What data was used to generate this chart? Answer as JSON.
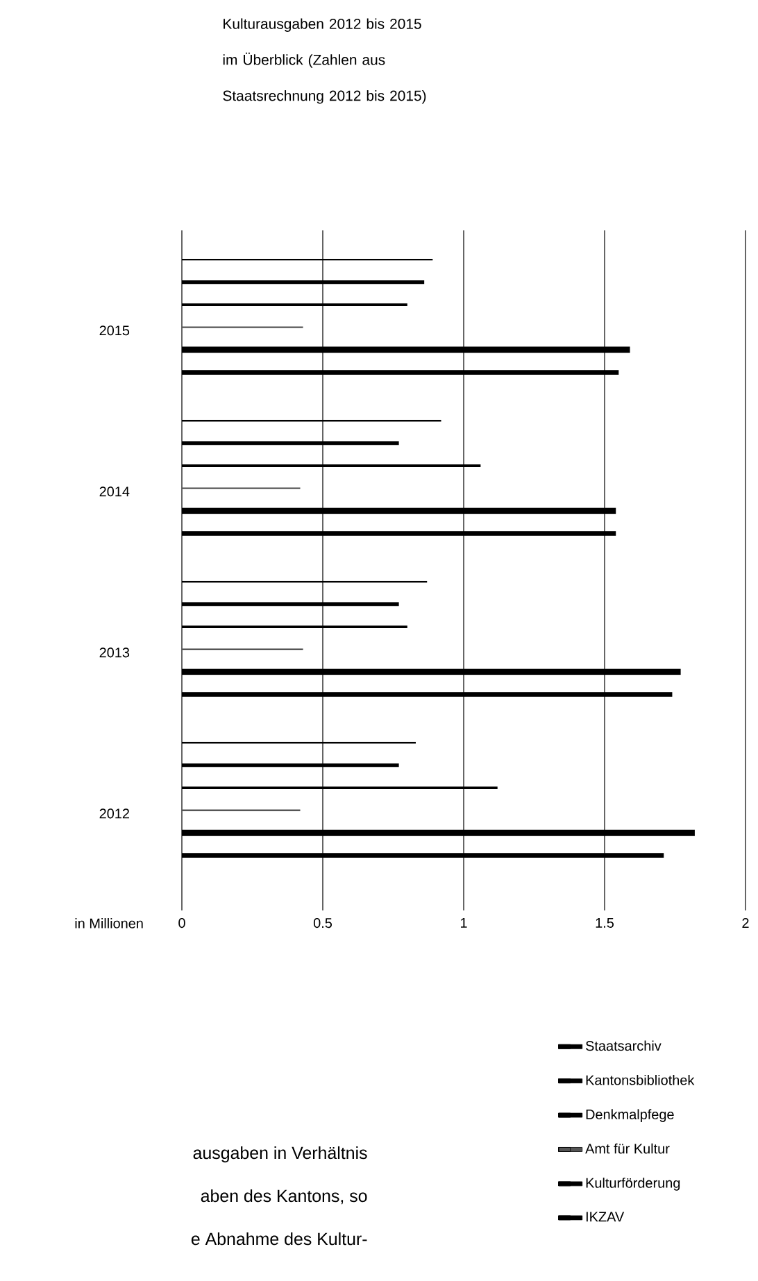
{
  "chart_data": {
    "type": "bar",
    "orientation": "horizontal",
    "title": "Kulturausgaben 2012 bis 2015 im Überblick (Zahlen aus Staatsrechnung 2012 bis 2015)",
    "xlabel": "in Millionen",
    "categories": [
      "2015",
      "2014",
      "2013",
      "2012"
    ],
    "series": [
      {
        "name": "Staatsarchiv",
        "color": "#000000",
        "values": [
          0.89,
          0.92,
          0.87,
          0.83
        ]
      },
      {
        "name": "Kantonsbibliothek",
        "color": "#000000",
        "values": [
          0.86,
          0.77,
          0.77,
          0.77
        ]
      },
      {
        "name": "Denkmalpfege",
        "color": "#000000",
        "values": [
          0.8,
          1.06,
          0.8,
          1.12
        ]
      },
      {
        "name": "Amt für Kultur",
        "color": "#555555",
        "values": [
          0.43,
          0.42,
          0.43,
          0.42
        ]
      },
      {
        "name": "Kulturförderung",
        "color": "#000000",
        "values": [
          1.59,
          1.54,
          1.77,
          1.82
        ]
      },
      {
        "name": "IKZAV",
        "color": "#000000",
        "values": [
          1.55,
          1.54,
          1.74,
          1.71
        ]
      }
    ],
    "xlim": [
      0,
      2
    ],
    "xticks": [
      0,
      0.5,
      1,
      1.5,
      2
    ],
    "grid": "x",
    "legend": "bottom right",
    "annotations": [
      "ausgaben in Verhältnis",
      "aben des Kantons, so",
      "e Abnahme des Kultur-"
    ]
  }
}
